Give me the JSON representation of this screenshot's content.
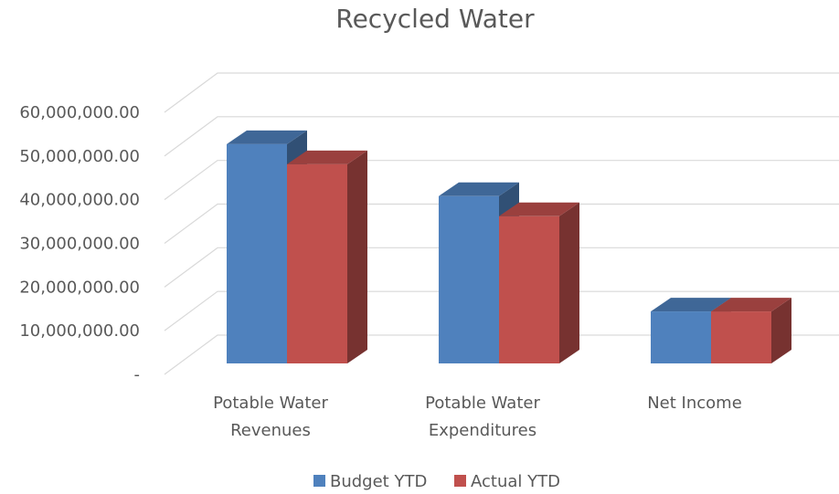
{
  "chart_data": {
    "type": "bar3d",
    "title": "Recycled Water",
    "categories": [
      [
        "Potable Water",
        "Revenues"
      ],
      [
        "Potable Water",
        "Expenditures"
      ],
      [
        "Net Income"
      ]
    ],
    "series": [
      {
        "name": "Budget YTD",
        "color": "#4f81bd",
        "values": [
          50200000,
          38300000,
          11900000
        ]
      },
      {
        "name": "Actual YTD",
        "color": "#c0504d",
        "values": [
          45600000,
          33700000,
          11900000
        ]
      }
    ],
    "ylim": [
      0,
      60000000
    ],
    "yticks": [
      {
        "value": 0,
        "label": "-"
      },
      {
        "value": 10000000,
        "label": "10,000,000.00"
      },
      {
        "value": 20000000,
        "label": "20,000,000.00"
      },
      {
        "value": 30000000,
        "label": "30,000,000.00"
      },
      {
        "value": 40000000,
        "label": "40,000,000.00"
      },
      {
        "value": 50000000,
        "label": "50,000,000.00"
      },
      {
        "value": 60000000,
        "label": "60,000,000.00"
      }
    ],
    "grid": true,
    "legend": "bottom"
  }
}
